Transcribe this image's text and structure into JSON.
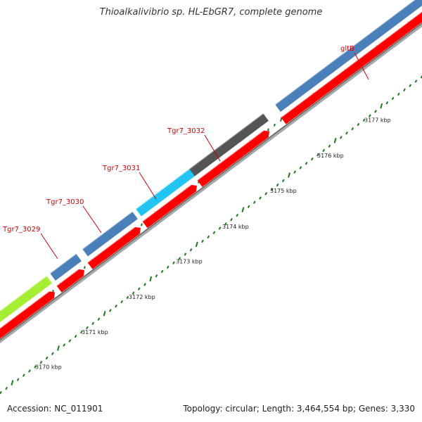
{
  "title": "Thioalkalivibrio sp. HL-EbGR7, complete genome",
  "footer": {
    "accession": "Accession: NC_011901",
    "summary": "Topology: circular; Length: 3,464,554 bp; Genes: 3,330"
  },
  "colors": {
    "label": "#cc0000",
    "forward_default": "#4a7fba",
    "reverse": "#ff0000",
    "backbone": "#8a8a8a",
    "tick": "#1a7a1a",
    "lime": "#a6ee33",
    "cyan": "#22c4f2",
    "gray": "#555555"
  },
  "scale": {
    "unit": "kbp",
    "ticks": [
      {
        "label": "3170 kbp"
      },
      {
        "label": "3171 kbp"
      },
      {
        "label": "3172 kbp"
      },
      {
        "label": "3173 kbp"
      },
      {
        "label": "3174 kbp"
      },
      {
        "label": "3175 kbp"
      },
      {
        "label": "3176 kbp"
      },
      {
        "label": "3177 kbp"
      }
    ]
  },
  "genes": [
    {
      "label": "Tgr7_3029"
    },
    {
      "label": "Tgr7_3030"
    },
    {
      "label": "Tgr7_3031"
    },
    {
      "label": "Tgr7_3032"
    },
    {
      "label": "gltB"
    }
  ]
}
